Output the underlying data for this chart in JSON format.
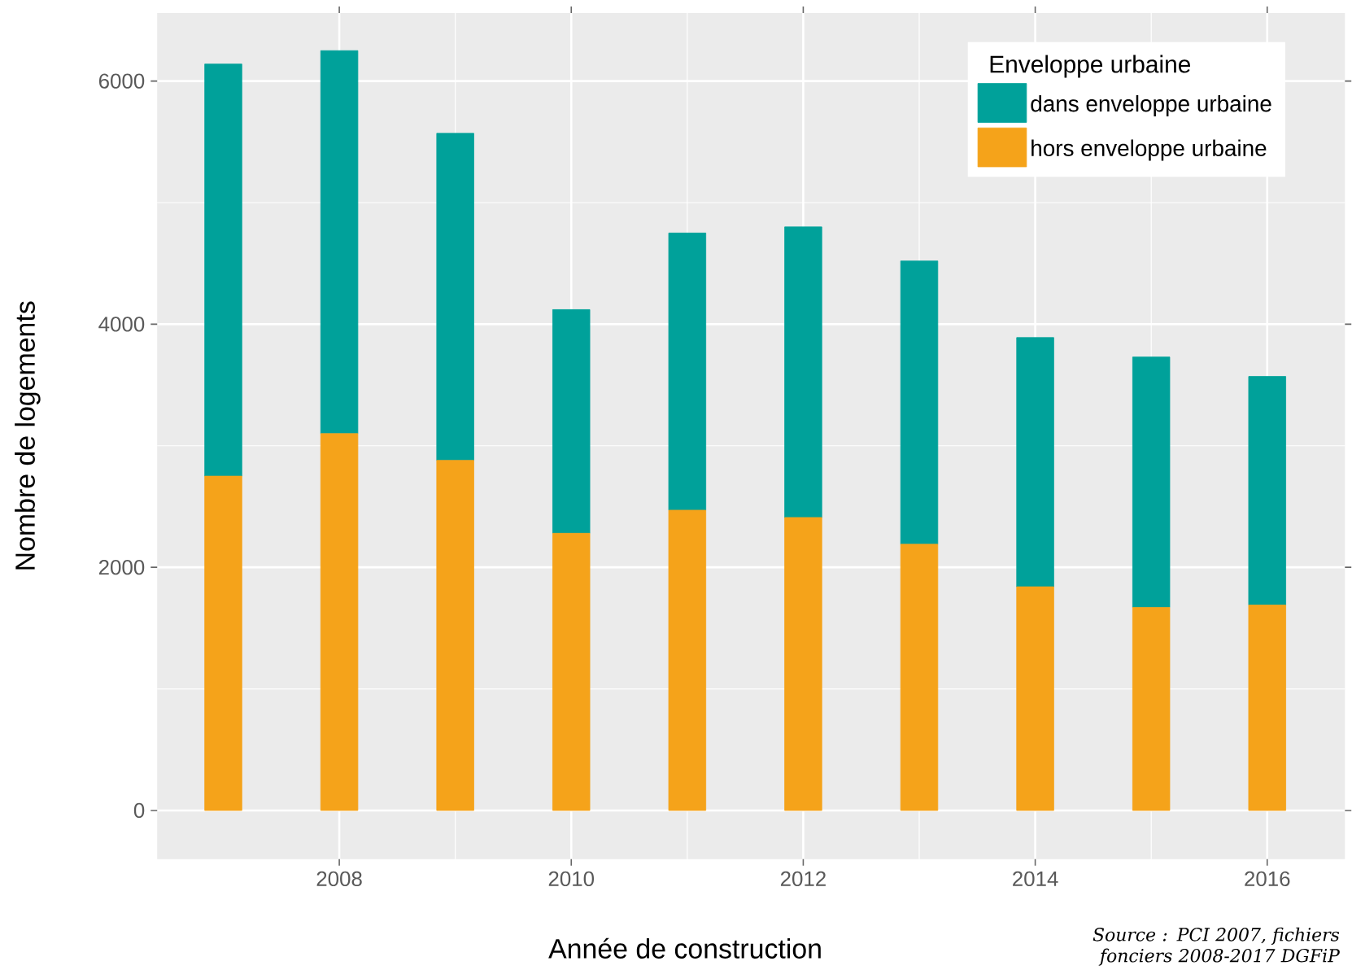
{
  "chart_data": {
    "type": "bar",
    "stacked": true,
    "xlabel": "Année de construction",
    "ylabel": "Nombre de logements",
    "legend_title": "Enveloppe urbaine",
    "x": [
      2007,
      2008,
      2009,
      2010,
      2011,
      2012,
      2013,
      2014,
      2015,
      2016
    ],
    "series": [
      {
        "name": "hors enveloppe urbaine",
        "color": "#f5a31a",
        "values": [
          2750,
          3100,
          2880,
          2280,
          2470,
          2410,
          2190,
          1840,
          1670,
          1690
        ]
      },
      {
        "name": "dans enveloppe urbaine",
        "color": "#00a19a",
        "values": [
          3390,
          3150,
          2690,
          1840,
          2280,
          2390,
          2330,
          2050,
          2060,
          1880
        ]
      }
    ],
    "xlim": [
      2006.43,
      2016.67
    ],
    "ylim": [
      -400,
      6560
    ],
    "xticks": [
      2008,
      2010,
      2012,
      2014,
      2016
    ],
    "yticks": [
      0,
      2000,
      4000,
      6000
    ],
    "grid": true,
    "legend": "top right",
    "annotations": [
      "Source : PCI 2007, fichiers fonciers 2008-2017 DGFiP"
    ]
  }
}
